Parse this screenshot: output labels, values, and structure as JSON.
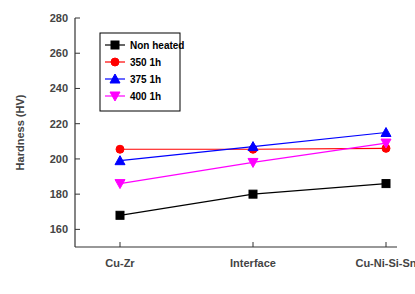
{
  "chart_data": {
    "type": "line",
    "y_label": "Hardness (HV)",
    "categories": [
      "Cu-Zr",
      "Interface",
      "Cu-Ni-Si-Sn"
    ],
    "series": [
      {
        "name": "Non heated",
        "color": "#000000",
        "marker": "square",
        "values": [
          168,
          180,
          186
        ]
      },
      {
        "name": "350 1h",
        "color": "#ff0000",
        "marker": "circle",
        "values": [
          205.5,
          205.5,
          206
        ]
      },
      {
        "name": "375 1h",
        "color": "#0000ff",
        "marker": "triangle-up",
        "values": [
          199,
          207,
          215
        ]
      },
      {
        "name": "400 1h",
        "color": "#ff00ff",
        "marker": "triangle-down",
        "values": [
          186,
          198,
          209
        ]
      }
    ],
    "ylim": [
      150,
      280
    ],
    "yticks": [
      160,
      180,
      200,
      220,
      240,
      260,
      280
    ],
    "grid": false,
    "legend": "upper left"
  }
}
